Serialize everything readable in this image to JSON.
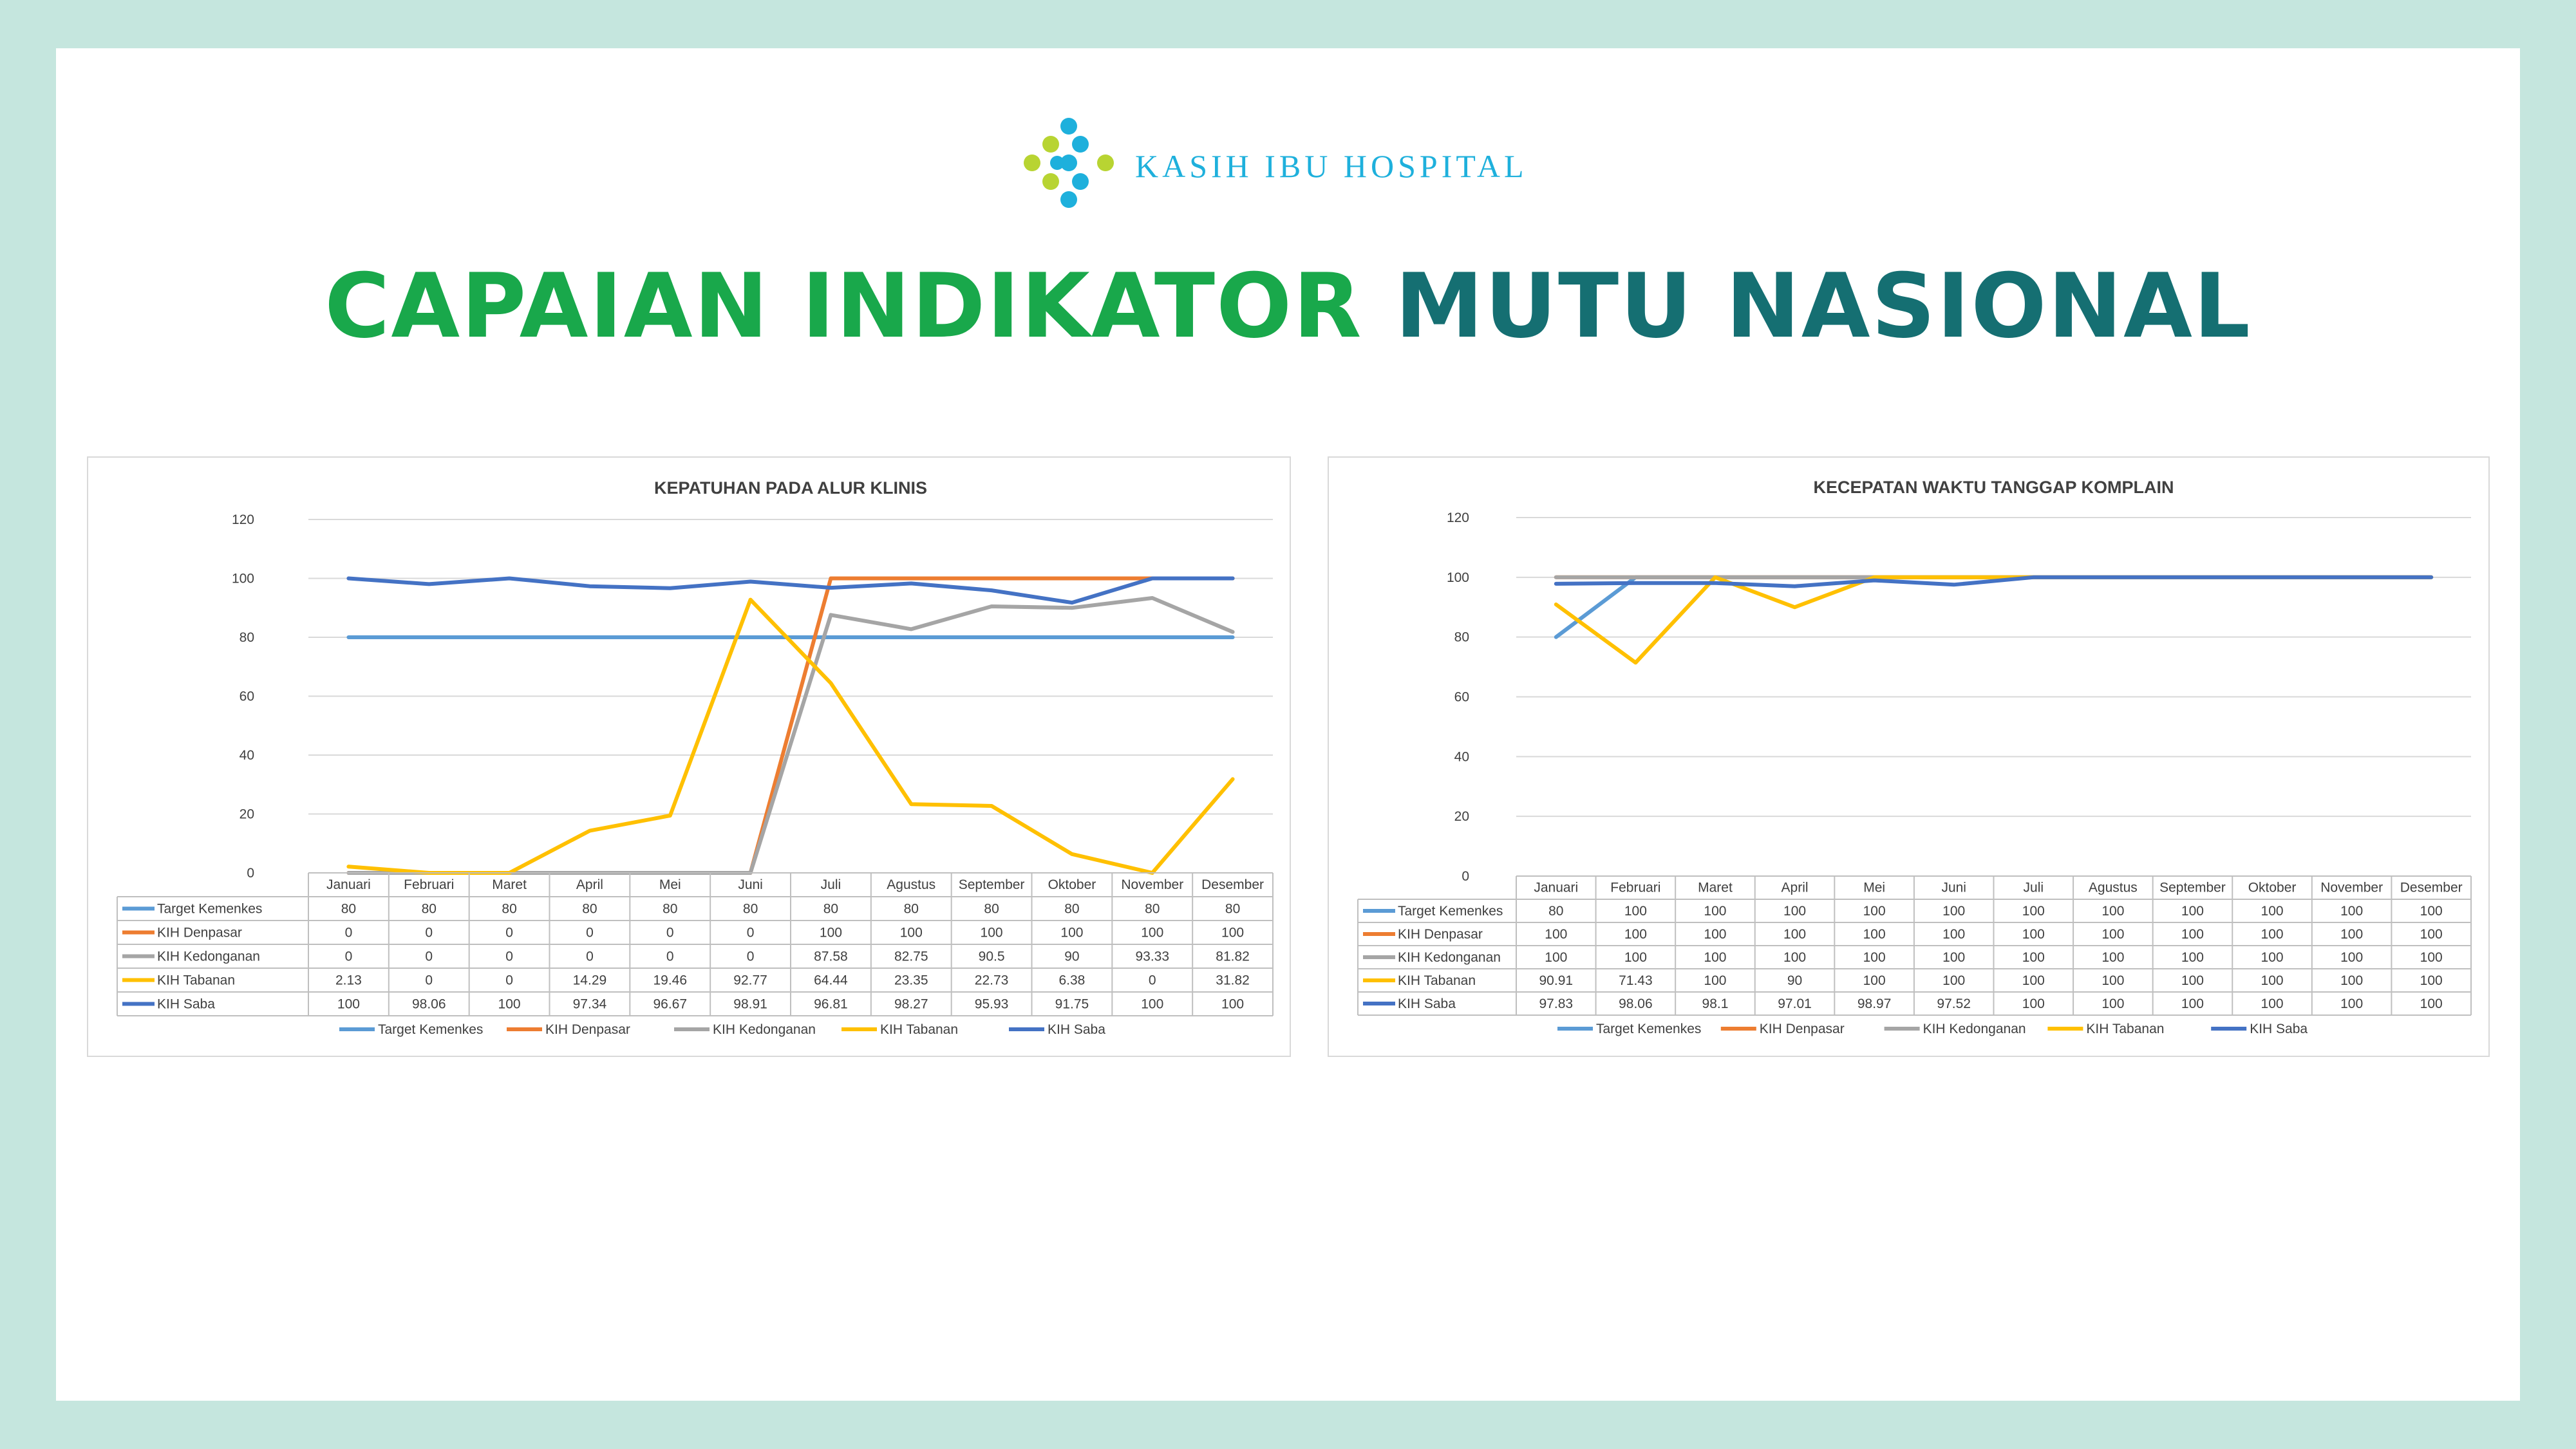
{
  "brand": {
    "name": "KASIH IBU HOSPITAL",
    "logo_icon": "kasih-ibu-dots-logo-icon",
    "colors": {
      "cyan": "#1eb0dc",
      "lime": "#b8d432"
    }
  },
  "headline": {
    "part1": "CAPAIAN INDIKATOR ",
    "part2": "MUTU NASIONAL",
    "color1": "#19a84b",
    "color2": "#156f72"
  },
  "chart_data": [
    {
      "type": "line",
      "title": "KEPATUHAN PADA ALUR KLINIS",
      "xlabel": "",
      "ylabel": "",
      "ylim": [
        0,
        120
      ],
      "yticks": [
        0,
        20,
        40,
        60,
        80,
        100,
        120
      ],
      "grid": true,
      "legend": "bottom",
      "data_table": true,
      "categories": [
        "Januari",
        "Februari",
        "Maret",
        "April",
        "Mei",
        "Juni",
        "Juli",
        "Agustus",
        "September",
        "Oktober",
        "November",
        "Desember"
      ],
      "series": [
        {
          "name": "Target Kemenkes",
          "color": "#5b9bd5",
          "values": [
            80,
            80,
            80,
            80,
            80,
            80,
            80,
            80,
            80,
            80,
            80,
            80
          ]
        },
        {
          "name": "KIH Denpasar",
          "color": "#ed7d31",
          "values": [
            0,
            0,
            0,
            0,
            0,
            0,
            100,
            100,
            100,
            100,
            100,
            100
          ]
        },
        {
          "name": "KIH Kedonganan",
          "color": "#a5a5a5",
          "values": [
            0,
            0,
            0,
            0,
            0,
            0,
            87.58,
            82.75,
            90.5,
            90,
            93.33,
            81.82
          ]
        },
        {
          "name": "KIH Tabanan",
          "color": "#ffc000",
          "values": [
            2.13,
            0,
            0,
            14.29,
            19.46,
            92.77,
            64.44,
            23.35,
            22.73,
            6.38,
            0,
            31.82
          ]
        },
        {
          "name": "KIH Saba",
          "color": "#4472c4",
          "values": [
            100,
            98.06,
            100,
            97.34,
            96.67,
            98.91,
            96.81,
            98.27,
            95.93,
            91.75,
            100,
            100
          ]
        }
      ]
    },
    {
      "type": "line",
      "title": "KECEPATAN WAKTU TANGGAP KOMPLAIN",
      "xlabel": "",
      "ylabel": "",
      "ylim": [
        0,
        120
      ],
      "yticks": [
        0,
        20,
        40,
        60,
        80,
        100,
        120
      ],
      "grid": true,
      "legend": "bottom",
      "data_table": true,
      "categories": [
        "Januari",
        "Februari",
        "Maret",
        "April",
        "Mei",
        "Juni",
        "Juli",
        "Agustus",
        "September",
        "Oktober",
        "November",
        "Desember"
      ],
      "series": [
        {
          "name": "Target Kemenkes",
          "color": "#5b9bd5",
          "values": [
            80,
            100,
            100,
            100,
            100,
            100,
            100,
            100,
            100,
            100,
            100,
            100
          ]
        },
        {
          "name": "KIH Denpasar",
          "color": "#ed7d31",
          "values": [
            100,
            100,
            100,
            100,
            100,
            100,
            100,
            100,
            100,
            100,
            100,
            100
          ]
        },
        {
          "name": "KIH Kedonganan",
          "color": "#a5a5a5",
          "values": [
            100,
            100,
            100,
            100,
            100,
            100,
            100,
            100,
            100,
            100,
            100,
            100
          ]
        },
        {
          "name": "KIH Tabanan",
          "color": "#ffc000",
          "values": [
            90.91,
            71.43,
            100,
            90,
            100,
            100,
            100,
            100,
            100,
            100,
            100,
            100
          ]
        },
        {
          "name": "KIH Saba",
          "color": "#4472c4",
          "values": [
            97.83,
            98.06,
            98.1,
            97.01,
            98.97,
            97.52,
            100,
            100,
            100,
            100,
            100,
            100
          ]
        }
      ]
    }
  ]
}
